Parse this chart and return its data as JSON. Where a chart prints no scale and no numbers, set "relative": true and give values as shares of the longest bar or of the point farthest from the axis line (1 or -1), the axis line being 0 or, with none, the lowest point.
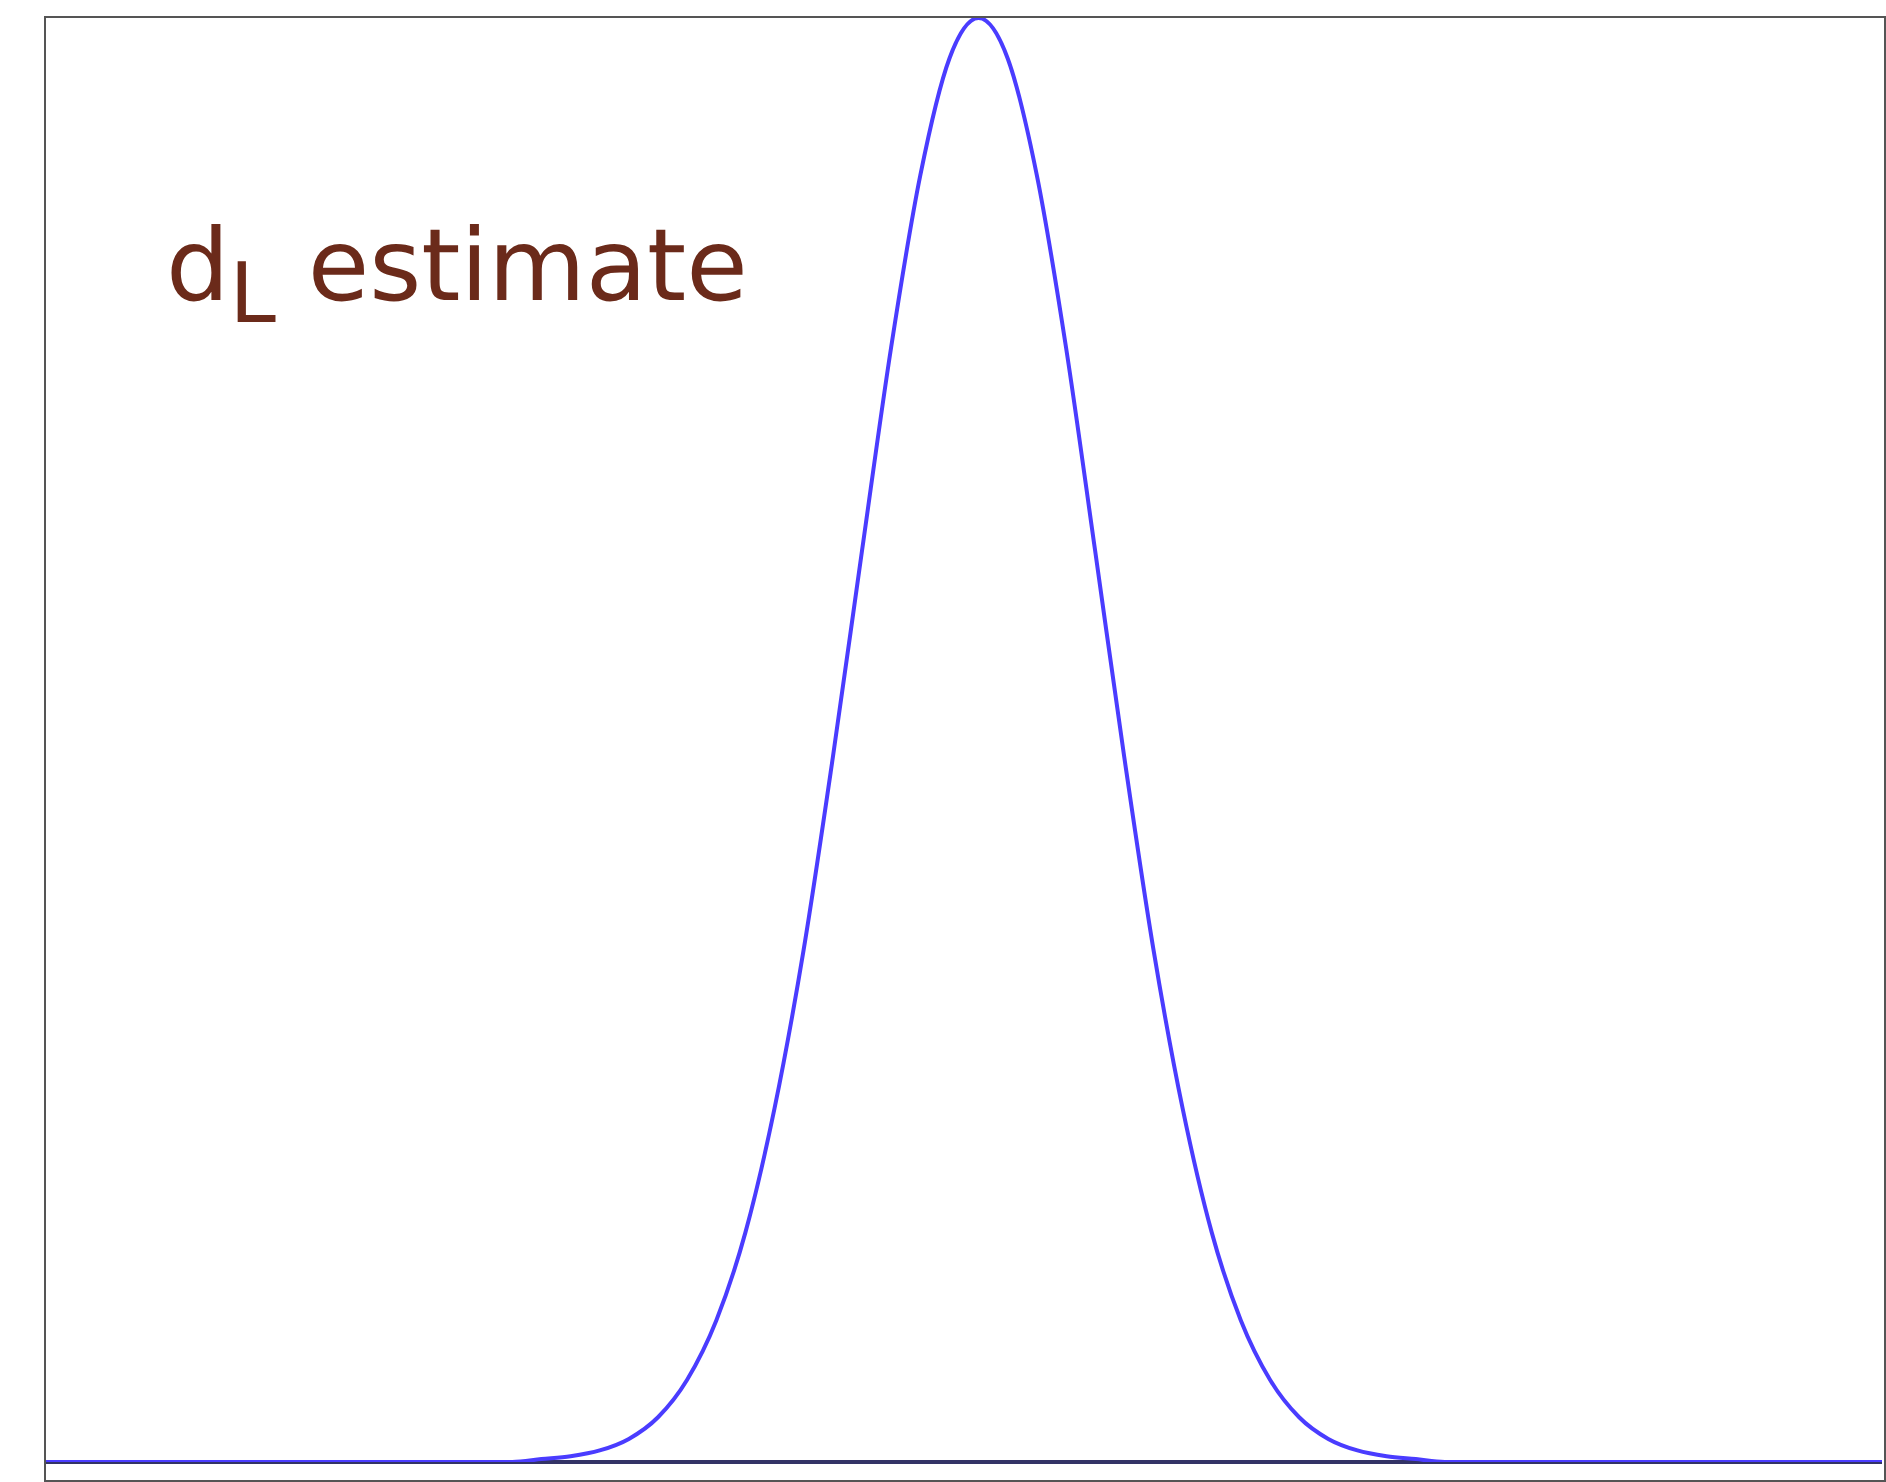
{
  "chart_data": {
    "type": "line",
    "title": "d$_{L}$ estimate",
    "categories": [
      null,
      null,
      null,
      null,
      null,
      null,
      null,
      null,
      null,
      null,
      null,
      null,
      null,
      null,
      null,
      null,
      null,
      null,
      null,
      null,
      null,
      null,
      null,
      null,
      null,
      null,
      null,
      null,
      null,
      null,
      null,
      null,
      null,
      null,
      null,
      null,
      null,
      null,
      null,
      null,
      null,
      null,
      null,
      null,
      null,
      null,
      null,
      null,
      null,
      null,
      null,
      null,
      null,
      null,
      null,
      null,
      null,
      null,
      null,
      null,
      null,
      null,
      null,
      null
    ],
    "values": [
      0,
      0,
      0,
      0,
      0,
      0,
      0,
      0,
      0,
      0,
      0,
      0,
      0,
      0,
      0,
      0,
      0,
      0.002,
      0.004,
      0.008,
      0.016,
      0.031,
      0.057,
      0.098,
      0.159,
      0.245,
      0.355,
      0.488,
      0.631,
      0.772,
      0.891,
      0.972,
      1,
      0.972,
      0.891,
      0.772,
      0.631,
      0.488,
      0.355,
      0.245,
      0.159,
      0.098,
      0.057,
      0.031,
      0.016,
      0.008,
      0.004,
      0.002,
      0,
      0,
      0,
      0,
      0,
      0,
      0,
      0,
      0,
      0,
      0,
      0,
      0,
      0,
      0,
      0
    ],
    "color": "#4a3cff",
    "relative": true,
    "tick_labels": false,
    "marker": "none"
  }
}
